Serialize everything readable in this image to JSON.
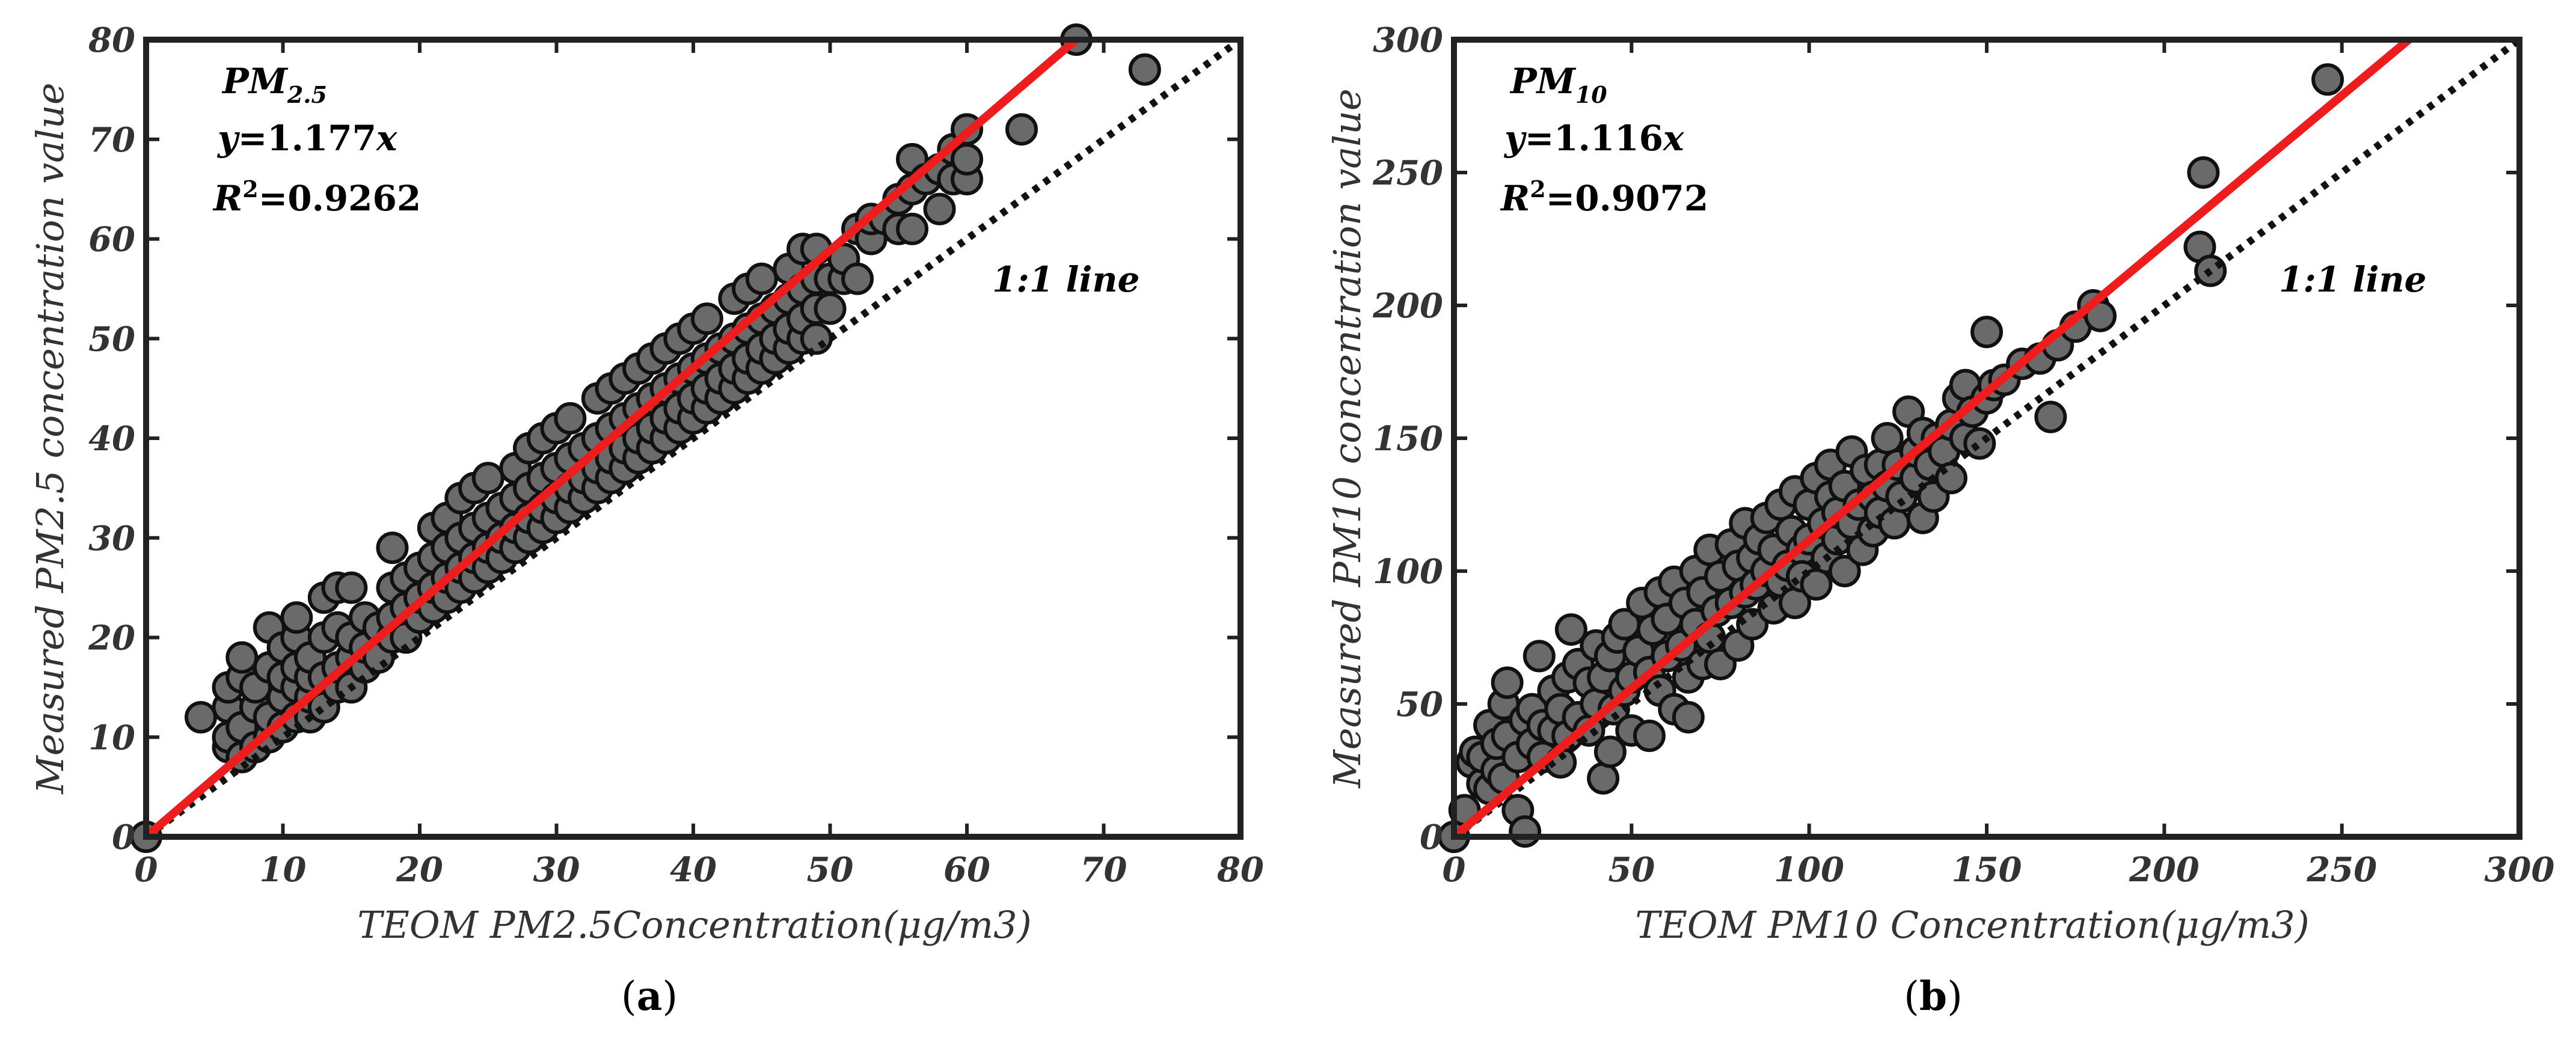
{
  "chart_data": [
    {
      "type": "scatter",
      "panel_label": "(a)",
      "panel_letter": "a",
      "xlabel": "TEOM PM2.5Concentration(μg/m3)",
      "ylabel": "Measured PM2.5 concentration value",
      "xlim": [
        0,
        80
      ],
      "ylim": [
        0,
        80
      ],
      "xticks": [
        0,
        10,
        20,
        30,
        40,
        50,
        60,
        70,
        80
      ],
      "yticks": [
        0,
        10,
        20,
        30,
        40,
        50,
        60,
        70,
        80
      ],
      "annotation": {
        "pollutant": "PM",
        "pollutant_sub": "2.5",
        "eq_y": "y",
        "eq_rest": "=1.177",
        "eq_x": "x",
        "r2_r": "R",
        "r2_sup": "2",
        "r2_rest": "=0.9262"
      },
      "fit_slope": 1.177,
      "one_to_one_label": "1:1 line",
      "fit_color": "#ee1c1c",
      "marker_color": "#6a6a6a",
      "points": [
        [
          0,
          0
        ],
        [
          4,
          12
        ],
        [
          6,
          9
        ],
        [
          6,
          10
        ],
        [
          6,
          13
        ],
        [
          6,
          15
        ],
        [
          7,
          8
        ],
        [
          7,
          11
        ],
        [
          7,
          16
        ],
        [
          7,
          18
        ],
        [
          8,
          9
        ],
        [
          8,
          13
        ],
        [
          8,
          15
        ],
        [
          9,
          10
        ],
        [
          9,
          12
        ],
        [
          9,
          17
        ],
        [
          9,
          21
        ],
        [
          10,
          11
        ],
        [
          10,
          14
        ],
        [
          10,
          16
        ],
        [
          10,
          19
        ],
        [
          11,
          12
        ],
        [
          11,
          15
        ],
        [
          11,
          17
        ],
        [
          11,
          20
        ],
        [
          11,
          22
        ],
        [
          12,
          12
        ],
        [
          12,
          14
        ],
        [
          12,
          16
        ],
        [
          12,
          18
        ],
        [
          13,
          13
        ],
        [
          13,
          16
        ],
        [
          13,
          20
        ],
        [
          13,
          24
        ],
        [
          14,
          15
        ],
        [
          14,
          17
        ],
        [
          14,
          21
        ],
        [
          14,
          25
        ],
        [
          15,
          15
        ],
        [
          15,
          18
        ],
        [
          15,
          20
        ],
        [
          15,
          25
        ],
        [
          16,
          17
        ],
        [
          16,
          19
        ],
        [
          16,
          22
        ],
        [
          17,
          18
        ],
        [
          17,
          21
        ],
        [
          18,
          20
        ],
        [
          18,
          22
        ],
        [
          18,
          25
        ],
        [
          18,
          29
        ],
        [
          19,
          20
        ],
        [
          19,
          23
        ],
        [
          19,
          26
        ],
        [
          20,
          22
        ],
        [
          20,
          24
        ],
        [
          20,
          27
        ],
        [
          21,
          23
        ],
        [
          21,
          25
        ],
        [
          21,
          28
        ],
        [
          21,
          31
        ],
        [
          22,
          24
        ],
        [
          22,
          26
        ],
        [
          22,
          29
        ],
        [
          22,
          32
        ],
        [
          23,
          25
        ],
        [
          23,
          27
        ],
        [
          23,
          30
        ],
        [
          23,
          34
        ],
        [
          24,
          26
        ],
        [
          24,
          28
        ],
        [
          24,
          31
        ],
        [
          24,
          35
        ],
        [
          25,
          27
        ],
        [
          25,
          29
        ],
        [
          25,
          32
        ],
        [
          25,
          36
        ],
        [
          26,
          28
        ],
        [
          26,
          30
        ],
        [
          26,
          33
        ],
        [
          27,
          29
        ],
        [
          27,
          31
        ],
        [
          27,
          34
        ],
        [
          27,
          37
        ],
        [
          28,
          30
        ],
        [
          28,
          32
        ],
        [
          28,
          35
        ],
        [
          28,
          39
        ],
        [
          29,
          31
        ],
        [
          29,
          33
        ],
        [
          29,
          36
        ],
        [
          29,
          40
        ],
        [
          30,
          32
        ],
        [
          30,
          34
        ],
        [
          30,
          37
        ],
        [
          30,
          41
        ],
        [
          31,
          33
        ],
        [
          31,
          35
        ],
        [
          31,
          38
        ],
        [
          31,
          42
        ],
        [
          32,
          34
        ],
        [
          32,
          36
        ],
        [
          32,
          39
        ],
        [
          33,
          35
        ],
        [
          33,
          37
        ],
        [
          33,
          40
        ],
        [
          33,
          44
        ],
        [
          34,
          36
        ],
        [
          34,
          38
        ],
        [
          34,
          41
        ],
        [
          34,
          45
        ],
        [
          35,
          37
        ],
        [
          35,
          39
        ],
        [
          35,
          42
        ],
        [
          35,
          46
        ],
        [
          36,
          38
        ],
        [
          36,
          40
        ],
        [
          36,
          43
        ],
        [
          36,
          47
        ],
        [
          37,
          39
        ],
        [
          37,
          41
        ],
        [
          37,
          44
        ],
        [
          37,
          48
        ],
        [
          38,
          40
        ],
        [
          38,
          42
        ],
        [
          38,
          45
        ],
        [
          38,
          49
        ],
        [
          39,
          41
        ],
        [
          39,
          43
        ],
        [
          39,
          46
        ],
        [
          39,
          50
        ],
        [
          40,
          42
        ],
        [
          40,
          44
        ],
        [
          40,
          47
        ],
        [
          40,
          51
        ],
        [
          41,
          43
        ],
        [
          41,
          45
        ],
        [
          41,
          48
        ],
        [
          41,
          52
        ],
        [
          42,
          44
        ],
        [
          42,
          46
        ],
        [
          42,
          49
        ],
        [
          43,
          45
        ],
        [
          43,
          47
        ],
        [
          43,
          50
        ],
        [
          43,
          54
        ],
        [
          44,
          46
        ],
        [
          44,
          48
        ],
        [
          44,
          51
        ],
        [
          44,
          55
        ],
        [
          45,
          47
        ],
        [
          45,
          49
        ],
        [
          45,
          52
        ],
        [
          45,
          56
        ],
        [
          46,
          48
        ],
        [
          46,
          50
        ],
        [
          46,
          53
        ],
        [
          47,
          49
        ],
        [
          47,
          51
        ],
        [
          47,
          54
        ],
        [
          47,
          57
        ],
        [
          48,
          50
        ],
        [
          48,
          52
        ],
        [
          48,
          55
        ],
        [
          48,
          59
        ],
        [
          49,
          50
        ],
        [
          49,
          53
        ],
        [
          49,
          56
        ],
        [
          49,
          59
        ],
        [
          50,
          53
        ],
        [
          50,
          56
        ],
        [
          51,
          56
        ],
        [
          51,
          58
        ],
        [
          52,
          56
        ],
        [
          52,
          61
        ],
        [
          53,
          60
        ],
        [
          53,
          62
        ],
        [
          54,
          62
        ],
        [
          55,
          61
        ],
        [
          55,
          64
        ],
        [
          56,
          61
        ],
        [
          56,
          65
        ],
        [
          56,
          68
        ],
        [
          57,
          66
        ],
        [
          58,
          63
        ],
        [
          58,
          67
        ],
        [
          59,
          66
        ],
        [
          59,
          69
        ],
        [
          60,
          66
        ],
        [
          60,
          68
        ],
        [
          60,
          71
        ],
        [
          64,
          71
        ],
        [
          68,
          80
        ],
        [
          73,
          77
        ]
      ]
    },
    {
      "type": "scatter",
      "panel_label": "(b)",
      "panel_letter": "b",
      "xlabel": "TEOM PM10 Concentration(μg/m3)",
      "ylabel": "Measured PM10 concentration value",
      "xlim": [
        0,
        300
      ],
      "ylim": [
        0,
        300
      ],
      "xticks": [
        0,
        50,
        100,
        150,
        200,
        250,
        300
      ],
      "yticks": [
        0,
        50,
        100,
        150,
        200,
        250,
        300
      ],
      "annotation": {
        "pollutant": "PM",
        "pollutant_sub": "10",
        "eq_y": "y",
        "eq_rest": "=1.116",
        "eq_x": "x",
        "r2_r": "R",
        "r2_sup": "2",
        "r2_rest": "=0.9072"
      },
      "fit_slope": 1.116,
      "one_to_one_label": "1:1 line",
      "fit_color": "#ee1c1c",
      "marker_color": "#6a6a6a",
      "points": [
        [
          0,
          0
        ],
        [
          3,
          10
        ],
        [
          5,
          28
        ],
        [
          6,
          32
        ],
        [
          8,
          20
        ],
        [
          8,
          30
        ],
        [
          10,
          18
        ],
        [
          10,
          42
        ],
        [
          12,
          25
        ],
        [
          12,
          35
        ],
        [
          14,
          22
        ],
        [
          14,
          50
        ],
        [
          15,
          38
        ],
        [
          15,
          58
        ],
        [
          18,
          10
        ],
        [
          18,
          30
        ],
        [
          20,
          2
        ],
        [
          20,
          44
        ],
        [
          22,
          35
        ],
        [
          22,
          48
        ],
        [
          24,
          68
        ],
        [
          25,
          30
        ],
        [
          25,
          42
        ],
        [
          28,
          40
        ],
        [
          28,
          55
        ],
        [
          30,
          28
        ],
        [
          30,
          48
        ],
        [
          32,
          38
        ],
        [
          32,
          60
        ],
        [
          33,
          78
        ],
        [
          35,
          45
        ],
        [
          35,
          65
        ],
        [
          38,
          40
        ],
        [
          38,
          58
        ],
        [
          40,
          50
        ],
        [
          40,
          72
        ],
        [
          42,
          22
        ],
        [
          42,
          60
        ],
        [
          44,
          32
        ],
        [
          44,
          68
        ],
        [
          45,
          48
        ],
        [
          46,
          75
        ],
        [
          48,
          55
        ],
        [
          48,
          80
        ],
        [
          50,
          40
        ],
        [
          50,
          60
        ],
        [
          52,
          70
        ],
        [
          53,
          88
        ],
        [
          55,
          38
        ],
        [
          55,
          62
        ],
        [
          56,
          78
        ],
        [
          58,
          55
        ],
        [
          58,
          92
        ],
        [
          60,
          68
        ],
        [
          60,
          82
        ],
        [
          62,
          48
        ],
        [
          62,
          96
        ],
        [
          64,
          72
        ],
        [
          65,
          88
        ],
        [
          66,
          45
        ],
        [
          66,
          60
        ],
        [
          68,
          80
        ],
        [
          68,
          100
        ],
        [
          70,
          65
        ],
        [
          70,
          92
        ],
        [
          72,
          75
        ],
        [
          72,
          108
        ],
        [
          74,
          85
        ],
        [
          75,
          65
        ],
        [
          75,
          98
        ],
        [
          78,
          88
        ],
        [
          78,
          110
        ],
        [
          80,
          72
        ],
        [
          80,
          102
        ],
        [
          82,
          92
        ],
        [
          82,
          118
        ],
        [
          84,
          80
        ],
        [
          84,
          105
        ],
        [
          85,
          95
        ],
        [
          86,
          112
        ],
        [
          88,
          100
        ],
        [
          88,
          120
        ],
        [
          90,
          86
        ],
        [
          90,
          108
        ],
        [
          92,
          96
        ],
        [
          92,
          125
        ],
        [
          94,
          102
        ],
        [
          95,
          115
        ],
        [
          96,
          88
        ],
        [
          96,
          130
        ],
        [
          98,
          108
        ],
        [
          98,
          98
        ],
        [
          100,
          112
        ],
        [
          100,
          125
        ],
        [
          102,
          95
        ],
        [
          102,
          135
        ],
        [
          104,
          118
        ],
        [
          105,
          105
        ],
        [
          106,
          128
        ],
        [
          106,
          140
        ],
        [
          108,
          112
        ],
        [
          108,
          122
        ],
        [
          110,
          100
        ],
        [
          110,
          132
        ],
        [
          112,
          118
        ],
        [
          112,
          145
        ],
        [
          114,
          125
        ],
        [
          115,
          108
        ],
        [
          116,
          138
        ],
        [
          118,
          128
        ],
        [
          118,
          115
        ],
        [
          120,
          140
        ],
        [
          120,
          122
        ],
        [
          122,
          132
        ],
        [
          122,
          150
        ],
        [
          124,
          118
        ],
        [
          125,
          140
        ],
        [
          126,
          128
        ],
        [
          128,
          160
        ],
        [
          130,
          135
        ],
        [
          130,
          145
        ],
        [
          132,
          120
        ],
        [
          132,
          152
        ],
        [
          134,
          140
        ],
        [
          135,
          128
        ],
        [
          136,
          150
        ],
        [
          138,
          145
        ],
        [
          140,
          135
        ],
        [
          140,
          155
        ],
        [
          142,
          165
        ],
        [
          144,
          150
        ],
        [
          144,
          170
        ],
        [
          146,
          160
        ],
        [
          148,
          148
        ],
        [
          150,
          190
        ],
        [
          150,
          165
        ],
        [
          152,
          170
        ],
        [
          155,
          172
        ],
        [
          160,
          178
        ],
        [
          165,
          180
        ],
        [
          168,
          158
        ],
        [
          170,
          185
        ],
        [
          175,
          192
        ],
        [
          180,
          200
        ],
        [
          182,
          196
        ],
        [
          210,
          222
        ],
        [
          211,
          250
        ],
        [
          213,
          213
        ],
        [
          246,
          285
        ]
      ]
    }
  ]
}
